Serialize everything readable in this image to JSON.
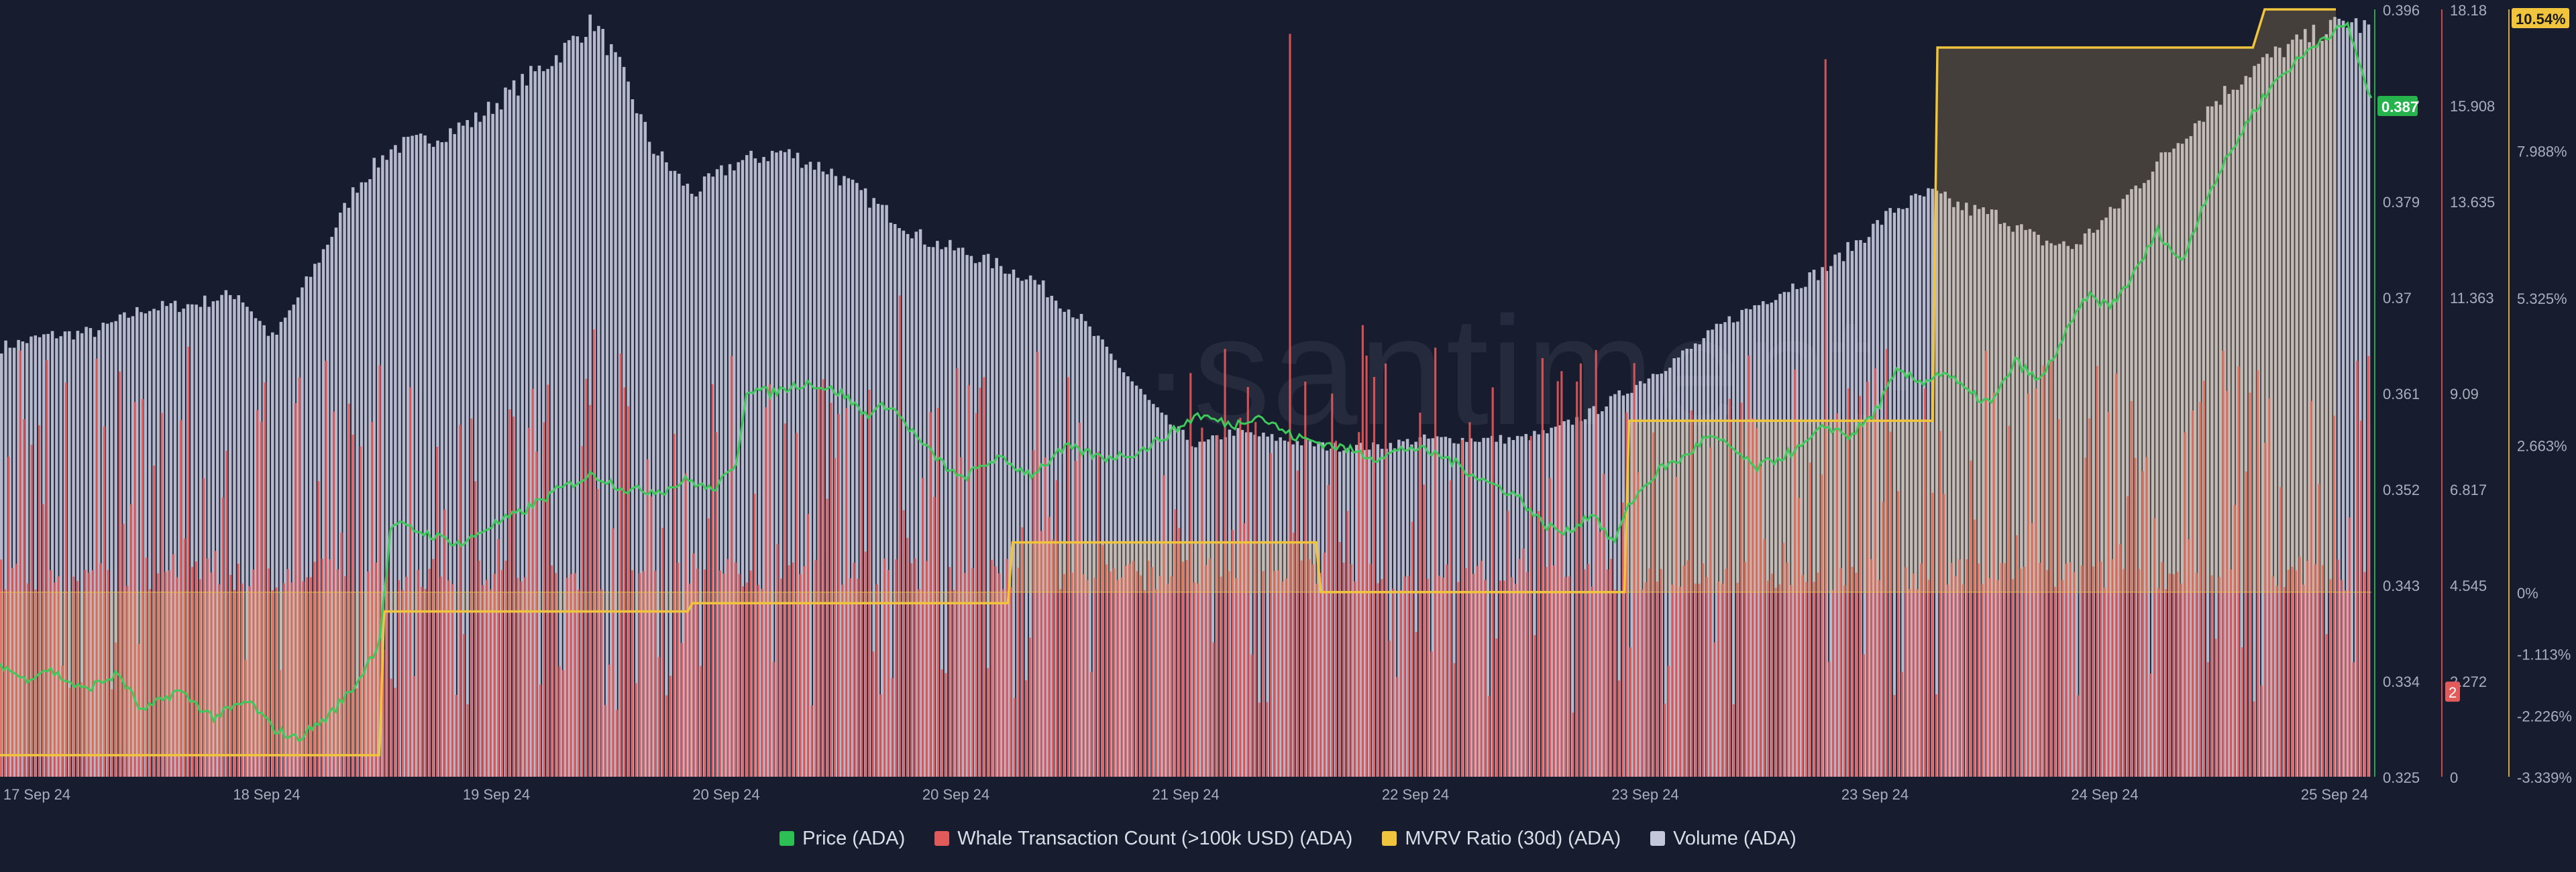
{
  "watermark": "·santiment·",
  "legend": [
    {
      "label": "Price (ADA)",
      "color": "#2dbf53"
    },
    {
      "label": "Whale Transaction Count (>100k USD) (ADA)",
      "color": "#e25a5a"
    },
    {
      "label": "MVRV Ratio (30d) (ADA)",
      "color": "#f0c43c"
    },
    {
      "label": "Volume (ADA)",
      "color": "#c4c7da"
    }
  ],
  "colors": {
    "background": "#181c2f",
    "price": "#3ec95a",
    "whale": "#e25a5a",
    "mvrv": "#f0c43c",
    "volume": "#c4c7da",
    "axis_text": "#a9aebd"
  },
  "chart_data": {
    "type": "line",
    "x_tick_labels": [
      "17 Sep 24",
      "18 Sep 24",
      "19 Sep 24",
      "20 Sep 24",
      "20 Sep 24",
      "21 Sep 24",
      "22 Sep 24",
      "23 Sep 24",
      "23 Sep 24",
      "24 Sep 24",
      "25 Sep 24"
    ],
    "price_axis": {
      "ticks": [
        "0.396",
        "0.387",
        "0.379",
        "0.37",
        "0.361",
        "0.352",
        "0.343",
        "0.334",
        "0.325"
      ],
      "range": [
        0.325,
        0.396
      ],
      "current_value_label": "0.387",
      "current_value_color": "#26b24c"
    },
    "whale_axis": {
      "ticks": [
        "18.18",
        "15.908",
        "13.635",
        "11.363",
        "9.09",
        "6.817",
        "4.545",
        "2.272",
        "0"
      ],
      "range": [
        0,
        18.18
      ],
      "current_value_label": "2",
      "current_value_color": "#e25a5a"
    },
    "mvrv_axis": {
      "ticks": [
        "10.54%",
        "7.988%",
        "5.325%",
        "2.663%",
        "0%",
        "-1.113%",
        "-2.226%",
        "-3.339%"
      ],
      "tick_values": [
        10.54,
        7.988,
        5.325,
        2.663,
        0,
        -1.113,
        -2.226,
        -3.339
      ],
      "current_value_label": "10.54%",
      "current_value_color": "#f0c43c"
    },
    "volume_profile": [
      [
        0,
        0.56
      ],
      [
        0.02,
        0.575
      ],
      [
        0.04,
        0.58
      ],
      [
        0.06,
        0.61
      ],
      [
        0.08,
        0.615
      ],
      [
        0.1,
        0.63
      ],
      [
        0.115,
        0.57
      ],
      [
        0.13,
        0.65
      ],
      [
        0.15,
        0.77
      ],
      [
        0.165,
        0.82
      ],
      [
        0.18,
        0.83
      ],
      [
        0.2,
        0.855
      ],
      [
        0.22,
        0.905
      ],
      [
        0.235,
        0.94
      ],
      [
        0.25,
        0.985
      ],
      [
        0.262,
        0.92
      ],
      [
        0.275,
        0.82
      ],
      [
        0.292,
        0.76
      ],
      [
        0.31,
        0.8
      ],
      [
        0.33,
        0.815
      ],
      [
        0.35,
        0.79
      ],
      [
        0.37,
        0.745
      ],
      [
        0.39,
        0.7
      ],
      [
        0.41,
        0.68
      ],
      [
        0.435,
        0.65
      ],
      [
        0.455,
        0.6
      ],
      [
        0.475,
        0.525
      ],
      [
        0.49,
        0.47
      ],
      [
        0.505,
        0.43
      ],
      [
        0.52,
        0.45
      ],
      [
        0.54,
        0.44
      ],
      [
        0.56,
        0.43
      ],
      [
        0.58,
        0.43
      ],
      [
        0.6,
        0.44
      ],
      [
        0.62,
        0.44
      ],
      [
        0.64,
        0.44
      ],
      [
        0.655,
        0.45
      ],
      [
        0.675,
        0.48
      ],
      [
        0.695,
        0.52
      ],
      [
        0.715,
        0.56
      ],
      [
        0.73,
        0.595
      ],
      [
        0.75,
        0.63
      ],
      [
        0.77,
        0.66
      ],
      [
        0.785,
        0.7
      ],
      [
        0.8,
        0.74
      ],
      [
        0.815,
        0.76
      ],
      [
        0.83,
        0.74
      ],
      [
        0.845,
        0.73
      ],
      [
        0.86,
        0.7
      ],
      [
        0.875,
        0.69
      ],
      [
        0.89,
        0.73
      ],
      [
        0.905,
        0.78
      ],
      [
        0.92,
        0.83
      ],
      [
        0.935,
        0.88
      ],
      [
        0.95,
        0.92
      ],
      [
        0.965,
        0.95
      ],
      [
        0.98,
        0.97
      ],
      [
        0.99,
        0.985
      ],
      [
        1.0,
        0.975
      ]
    ],
    "price_profile": [
      [
        0,
        0.3355
      ],
      [
        0.01,
        0.334
      ],
      [
        0.02,
        0.335
      ],
      [
        0.035,
        0.333
      ],
      [
        0.05,
        0.3345
      ],
      [
        0.06,
        0.331
      ],
      [
        0.075,
        0.333
      ],
      [
        0.09,
        0.3305
      ],
      [
        0.105,
        0.332
      ],
      [
        0.115,
        0.3295
      ],
      [
        0.125,
        0.3285
      ],
      [
        0.138,
        0.3305
      ],
      [
        0.15,
        0.3335
      ],
      [
        0.16,
        0.3375
      ],
      [
        0.165,
        0.3485
      ],
      [
        0.18,
        0.3475
      ],
      [
        0.195,
        0.3465
      ],
      [
        0.205,
        0.348
      ],
      [
        0.22,
        0.3495
      ],
      [
        0.235,
        0.3515
      ],
      [
        0.25,
        0.353
      ],
      [
        0.265,
        0.3515
      ],
      [
        0.28,
        0.3515
      ],
      [
        0.29,
        0.3525
      ],
      [
        0.3,
        0.3515
      ],
      [
        0.31,
        0.3535
      ],
      [
        0.315,
        0.361
      ],
      [
        0.325,
        0.3605
      ],
      [
        0.34,
        0.3615
      ],
      [
        0.355,
        0.3605
      ],
      [
        0.365,
        0.3585
      ],
      [
        0.375,
        0.3595
      ],
      [
        0.39,
        0.3555
      ],
      [
        0.405,
        0.3525
      ],
      [
        0.42,
        0.3545
      ],
      [
        0.435,
        0.353
      ],
      [
        0.45,
        0.3555
      ],
      [
        0.465,
        0.3545
      ],
      [
        0.48,
        0.355
      ],
      [
        0.495,
        0.357
      ],
      [
        0.505,
        0.3585
      ],
      [
        0.52,
        0.3575
      ],
      [
        0.53,
        0.3585
      ],
      [
        0.545,
        0.3565
      ],
      [
        0.555,
        0.356
      ],
      [
        0.565,
        0.3555
      ],
      [
        0.58,
        0.3545
      ],
      [
        0.595,
        0.3555
      ],
      [
        0.61,
        0.3545
      ],
      [
        0.625,
        0.3525
      ],
      [
        0.64,
        0.351
      ],
      [
        0.65,
        0.3485
      ],
      [
        0.66,
        0.3475
      ],
      [
        0.672,
        0.3495
      ],
      [
        0.68,
        0.3465
      ],
      [
        0.688,
        0.3505
      ],
      [
        0.7,
        0.3535
      ],
      [
        0.71,
        0.3545
      ],
      [
        0.72,
        0.3565
      ],
      [
        0.73,
        0.3555
      ],
      [
        0.74,
        0.3535
      ],
      [
        0.75,
        0.3545
      ],
      [
        0.76,
        0.3555
      ],
      [
        0.77,
        0.3575
      ],
      [
        0.78,
        0.3565
      ],
      [
        0.79,
        0.3585
      ],
      [
        0.8,
        0.3625
      ],
      [
        0.81,
        0.3615
      ],
      [
        0.82,
        0.3625
      ],
      [
        0.83,
        0.3605
      ],
      [
        0.84,
        0.3595
      ],
      [
        0.85,
        0.3635
      ],
      [
        0.86,
        0.3615
      ],
      [
        0.87,
        0.3655
      ],
      [
        0.88,
        0.3695
      ],
      [
        0.89,
        0.3685
      ],
      [
        0.9,
        0.3715
      ],
      [
        0.91,
        0.3755
      ],
      [
        0.92,
        0.3725
      ],
      [
        0.93,
        0.3785
      ],
      [
        0.94,
        0.3825
      ],
      [
        0.95,
        0.3865
      ],
      [
        0.96,
        0.3895
      ],
      [
        0.97,
        0.3915
      ],
      [
        0.98,
        0.3935
      ],
      [
        0.99,
        0.3945
      ],
      [
        1.0,
        0.3875
      ]
    ],
    "mvrv_profile": [
      [
        0,
        -2.95
      ],
      [
        0.16,
        -2.95
      ],
      [
        0.162,
        -0.35
      ],
      [
        0.29,
        -0.35
      ],
      [
        0.292,
        -0.2
      ],
      [
        0.425,
        -0.2
      ],
      [
        0.427,
        0.9
      ],
      [
        0.555,
        0.9
      ],
      [
        0.557,
        0.0
      ],
      [
        0.685,
        0.0
      ],
      [
        0.687,
        3.1
      ],
      [
        0.815,
        3.1
      ],
      [
        0.817,
        9.85
      ],
      [
        0.95,
        9.85
      ],
      [
        0.955,
        10.54
      ],
      [
        0.985,
        10.54
      ]
    ],
    "whale_baseline": 4.8,
    "whale_spikes": [
      [
        0.05,
        9.6
      ],
      [
        0.2,
        7.0
      ],
      [
        0.25,
        10.6
      ],
      [
        0.3,
        9.3
      ],
      [
        0.38,
        11.4
      ],
      [
        0.545,
        17.6
      ],
      [
        0.575,
        10.7
      ],
      [
        0.69,
        9.8
      ],
      [
        0.77,
        17.0
      ],
      [
        0.86,
        9.2
      ],
      [
        0.9,
        8.9
      ],
      [
        0.95,
        9.1
      ]
    ]
  }
}
